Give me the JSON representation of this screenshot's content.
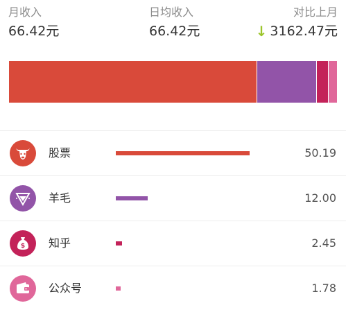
{
  "summary": {
    "monthly_income_label": "月收入",
    "monthly_income_value": "66.42元",
    "daily_avg_label": "日均收入",
    "daily_avg_value": "66.42元",
    "compare_label": "对比上月",
    "compare_value": "3162.47元",
    "compare_direction_icon": "down-arrow-icon",
    "compare_direction_color": "#9bc42a"
  },
  "breakdown": [
    {
      "name": "股票",
      "value": "50.19",
      "amount": 50.19,
      "color": "#d94a3a",
      "icon": "bull-icon"
    },
    {
      "name": "羊毛",
      "value": "12.00",
      "amount": 12.0,
      "color": "#9254a8",
      "icon": "diamond-icon"
    },
    {
      "name": "知乎",
      "value": "2.45",
      "amount": 2.45,
      "color": "#c32259",
      "icon": "money-bag-icon"
    },
    {
      "name": "公众号",
      "value": "1.78",
      "amount": 1.78,
      "color": "#e0679a",
      "icon": "wallet-icon"
    }
  ]
}
